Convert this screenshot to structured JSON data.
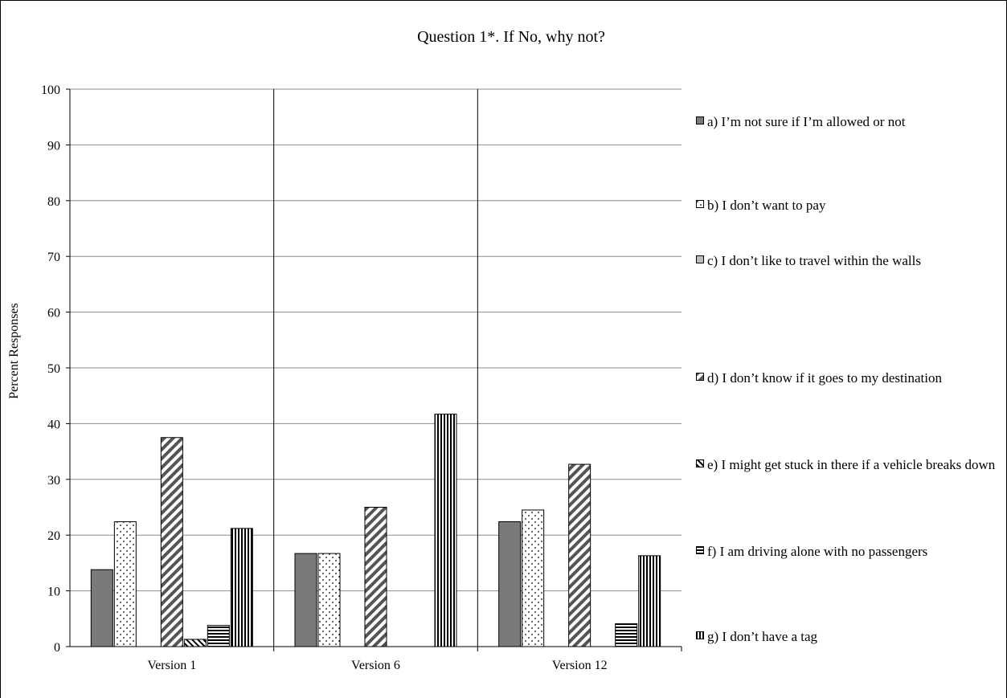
{
  "chart_data": {
    "type": "bar",
    "title": "Question 1*.  If No, why not?",
    "ylabel": "Percent Responses",
    "xlabel": "",
    "ylim": [
      0,
      100
    ],
    "yticks": [
      0,
      10,
      20,
      30,
      40,
      50,
      60,
      70,
      80,
      90,
      100
    ],
    "grid": true,
    "legend_position": "right",
    "categories": [
      "Version 1",
      "Version 6",
      "Version 12"
    ],
    "series": [
      {
        "name": "a) I’m not sure if I’m allowed or not",
        "values": [
          13.8,
          16.7,
          22.4
        ],
        "pattern": "solid-dark"
      },
      {
        "name": "b) I don’t want to pay",
        "values": [
          22.4,
          16.7,
          24.5
        ],
        "pattern": "dots"
      },
      {
        "name": "c) I don’t like to travel within the walls",
        "values": [
          0,
          0,
          0
        ],
        "pattern": "solid-light"
      },
      {
        "name": "d) I don’t know if it goes to my destination",
        "values": [
          37.5,
          25.0,
          32.7
        ],
        "pattern": "wide-diagonal"
      },
      {
        "name": "e) I might get stuck in there if a vehicle breaks down",
        "values": [
          1.3,
          0,
          0
        ],
        "pattern": "narrow-diagonal"
      },
      {
        "name": "f) I am driving alone with no passengers",
        "values": [
          3.8,
          0,
          4.1
        ],
        "pattern": "horizontal"
      },
      {
        "name": "g) I don’t have a tag",
        "values": [
          21.2,
          41.7,
          16.3
        ],
        "pattern": "vertical"
      }
    ],
    "colors": {
      "dark_fill": "#7a7a7a",
      "light_fill": "#bdbdbd",
      "grid": "#8c8c8c",
      "axis": "#000000"
    }
  }
}
